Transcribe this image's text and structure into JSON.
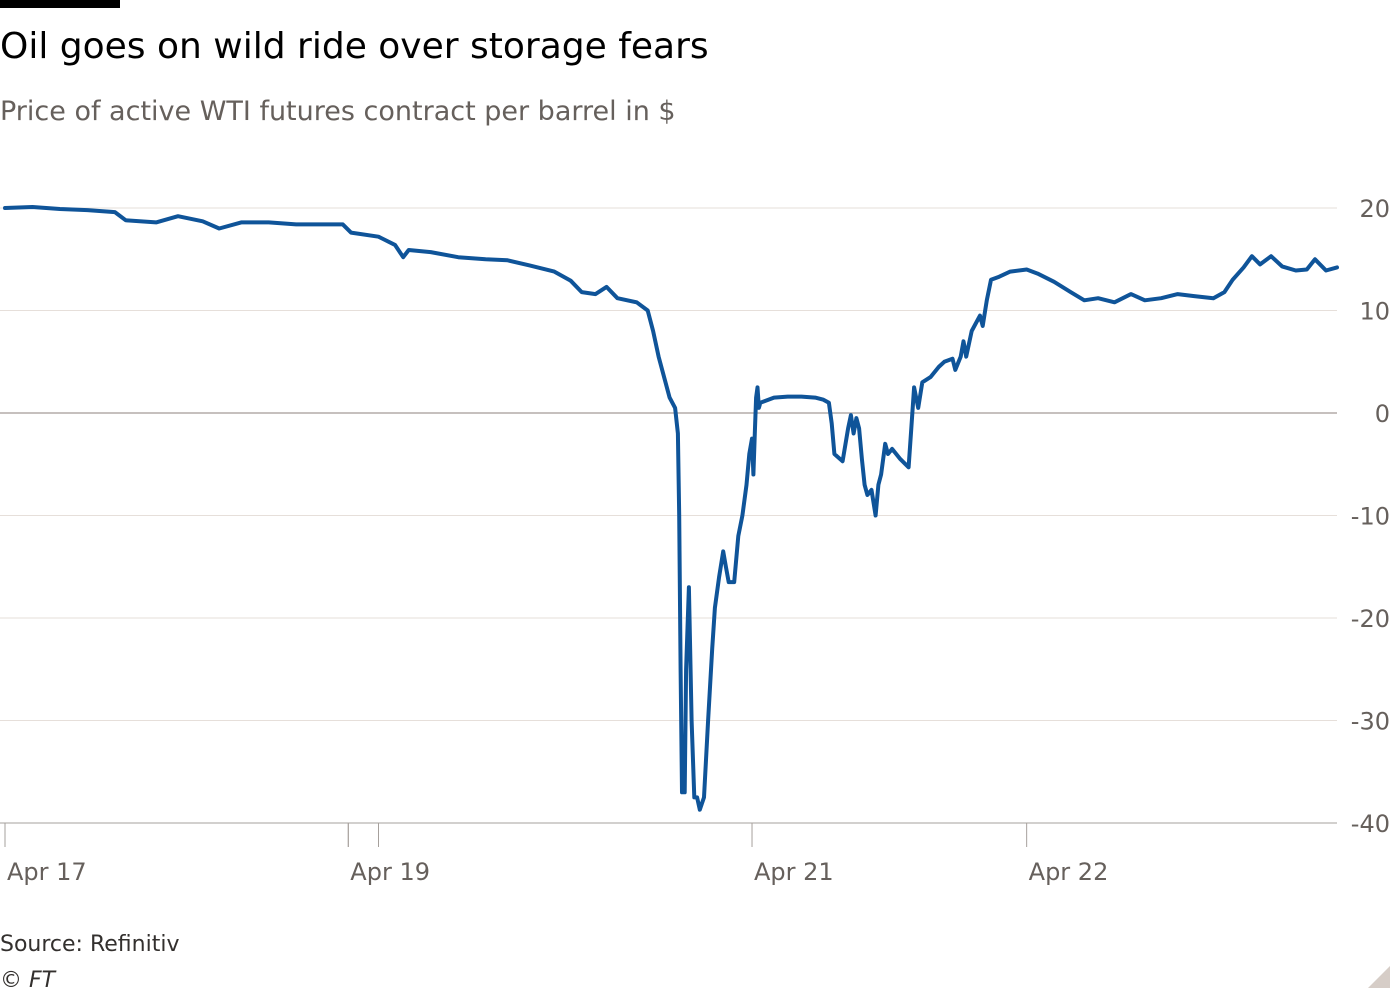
{
  "header": {
    "title": "Oil goes on wild ride over storage fears",
    "subtitle": "Price of active WTI futures contract per barrel in $"
  },
  "footer": {
    "source": "Source: Refinitiv",
    "copyright": "© FT"
  },
  "colors": {
    "line": "#0f5499",
    "grid": "#e6dfda",
    "zero_line": "#b3aca8",
    "tick_text": "#66605c"
  },
  "chart_data": {
    "type": "line",
    "title": "Oil goes on wild ride over storage fears",
    "subtitle": "Price of active WTI futures contract per barrel in $",
    "ylim": [
      -40,
      20
    ],
    "yticks": [
      20,
      10,
      0,
      -10,
      -20,
      -30,
      -40
    ],
    "ytick_labels": [
      "20",
      "10",
      "0",
      "-10",
      "-20",
      "-30",
      "-40"
    ],
    "y_axis_side": "right",
    "x_unit": "days from Apr 17",
    "xlim": [
      0,
      4.85
    ],
    "xticks": [
      {
        "label": "Apr 17",
        "x": 0.0
      },
      {
        "label": "Apr 19",
        "x": 1.25
      },
      {
        "label": "Apr 21",
        "x": 2.72
      },
      {
        "label": "Apr 22",
        "x": 3.72
      }
    ],
    "gap_markers": [
      1.25,
      1.36
    ],
    "grid": true,
    "series": [
      {
        "points": [
          [
            0.0,
            20.0
          ],
          [
            0.1,
            20.1
          ],
          [
            0.2,
            19.9
          ],
          [
            0.3,
            19.8
          ],
          [
            0.4,
            19.6
          ],
          [
            0.44,
            18.8
          ],
          [
            0.55,
            18.6
          ],
          [
            0.63,
            19.2
          ],
          [
            0.72,
            18.7
          ],
          [
            0.78,
            18.0
          ],
          [
            0.86,
            18.6
          ],
          [
            0.96,
            18.6
          ],
          [
            1.06,
            18.4
          ],
          [
            1.16,
            18.4
          ],
          [
            1.23,
            18.4
          ],
          [
            1.26,
            17.6
          ],
          [
            1.36,
            17.2
          ],
          [
            1.42,
            16.4
          ],
          [
            1.45,
            15.2
          ],
          [
            1.47,
            15.9
          ],
          [
            1.55,
            15.7
          ],
          [
            1.65,
            15.2
          ],
          [
            1.75,
            15.0
          ],
          [
            1.83,
            14.9
          ],
          [
            1.91,
            14.4
          ],
          [
            2.0,
            13.8
          ],
          [
            2.06,
            12.9
          ],
          [
            2.1,
            11.8
          ],
          [
            2.15,
            11.6
          ],
          [
            2.19,
            12.3
          ],
          [
            2.23,
            11.2
          ],
          [
            2.3,
            10.8
          ],
          [
            2.34,
            10.0
          ],
          [
            2.36,
            8.0
          ],
          [
            2.38,
            5.5
          ],
          [
            2.4,
            3.5
          ],
          [
            2.42,
            1.5
          ],
          [
            2.44,
            0.5
          ],
          [
            2.45,
            -2.0
          ],
          [
            2.455,
            -10.0
          ],
          [
            2.46,
            -25.0
          ],
          [
            2.465,
            -37.0
          ],
          [
            2.475,
            -37.0
          ],
          [
            2.48,
            -25.0
          ],
          [
            2.49,
            -17.0
          ],
          [
            2.5,
            -30.0
          ],
          [
            2.51,
            -37.5
          ],
          [
            2.52,
            -37.5
          ],
          [
            2.53,
            -38.7
          ],
          [
            2.545,
            -37.5
          ],
          [
            2.56,
            -30.0
          ],
          [
            2.575,
            -23.0
          ],
          [
            2.585,
            -19.0
          ],
          [
            2.6,
            -16.0
          ],
          [
            2.615,
            -13.5
          ],
          [
            2.625,
            -15.0
          ],
          [
            2.635,
            -16.5
          ],
          [
            2.655,
            -16.5
          ],
          [
            2.67,
            -12.0
          ],
          [
            2.685,
            -10.0
          ],
          [
            2.7,
            -7.0
          ],
          [
            2.71,
            -4.0
          ],
          [
            2.72,
            -2.5
          ],
          [
            2.725,
            -6.0
          ],
          [
            2.73,
            -2.0
          ],
          [
            2.735,
            1.5
          ],
          [
            2.74,
            2.5
          ],
          [
            2.745,
            0.5
          ],
          [
            2.75,
            1.0
          ],
          [
            2.8,
            1.5
          ],
          [
            2.85,
            1.6
          ],
          [
            2.9,
            1.6
          ],
          [
            2.95,
            1.5
          ],
          [
            2.98,
            1.3
          ],
          [
            3.0,
            1.0
          ],
          [
            3.01,
            -1.0
          ],
          [
            3.02,
            -4.0
          ],
          [
            3.05,
            -4.7
          ],
          [
            3.07,
            -1.5
          ],
          [
            3.08,
            -0.2
          ],
          [
            3.09,
            -2.0
          ],
          [
            3.1,
            -0.5
          ],
          [
            3.11,
            -1.5
          ],
          [
            3.12,
            -4.5
          ],
          [
            3.13,
            -7.0
          ],
          [
            3.14,
            -8.0
          ],
          [
            3.155,
            -7.5
          ],
          [
            3.17,
            -10.0
          ],
          [
            3.18,
            -7.0
          ],
          [
            3.19,
            -6.0
          ],
          [
            3.205,
            -3.0
          ],
          [
            3.215,
            -4.0
          ],
          [
            3.23,
            -3.5
          ],
          [
            3.26,
            -4.5
          ],
          [
            3.29,
            -5.3
          ],
          [
            3.3,
            -1.5
          ],
          [
            3.31,
            2.5
          ],
          [
            3.325,
            0.5
          ],
          [
            3.34,
            3.0
          ],
          [
            3.37,
            3.5
          ],
          [
            3.4,
            4.5
          ],
          [
            3.42,
            5.0
          ],
          [
            3.45,
            5.3
          ],
          [
            3.46,
            4.2
          ],
          [
            3.48,
            5.5
          ],
          [
            3.49,
            7.0
          ],
          [
            3.5,
            5.5
          ],
          [
            3.52,
            8.0
          ],
          [
            3.55,
            9.5
          ],
          [
            3.56,
            8.5
          ],
          [
            3.575,
            11.0
          ],
          [
            3.59,
            13.0
          ],
          [
            3.62,
            13.3
          ],
          [
            3.66,
            13.8
          ],
          [
            3.72,
            14.0
          ],
          [
            3.76,
            13.6
          ],
          [
            3.82,
            12.8
          ],
          [
            3.88,
            11.8
          ],
          [
            3.93,
            11.0
          ],
          [
            3.98,
            11.2
          ],
          [
            4.04,
            10.8
          ],
          [
            4.1,
            11.6
          ],
          [
            4.15,
            11.0
          ],
          [
            4.21,
            11.2
          ],
          [
            4.27,
            11.6
          ],
          [
            4.33,
            11.4
          ],
          [
            4.4,
            11.2
          ],
          [
            4.44,
            11.8
          ],
          [
            4.47,
            13.0
          ],
          [
            4.51,
            14.2
          ],
          [
            4.54,
            15.3
          ],
          [
            4.57,
            14.5
          ],
          [
            4.61,
            15.3
          ],
          [
            4.65,
            14.3
          ],
          [
            4.7,
            13.9
          ],
          [
            4.74,
            14.0
          ],
          [
            4.77,
            15.0
          ],
          [
            4.81,
            13.9
          ],
          [
            4.85,
            14.2
          ]
        ]
      }
    ]
  }
}
